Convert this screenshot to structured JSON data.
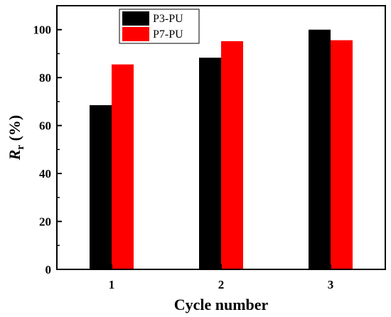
{
  "chart_data": {
    "type": "bar",
    "categories": [
      "1",
      "2",
      "3"
    ],
    "series": [
      {
        "name": "P3-PU",
        "values": [
          68.5,
          88.3,
          100.0
        ],
        "color": "#000000"
      },
      {
        "name": "P7-PU",
        "values": [
          85.5,
          95.2,
          95.6
        ],
        "color": "#ff0000"
      }
    ],
    "xlabel": "Cycle number",
    "ylabel": {
      "symbol": "R",
      "subscript": "r",
      "unit": " (%)"
    },
    "ylim": [
      0,
      110
    ],
    "yticks": [
      0,
      20,
      40,
      60,
      80,
      100
    ],
    "grid": false,
    "legend": "top-left"
  }
}
